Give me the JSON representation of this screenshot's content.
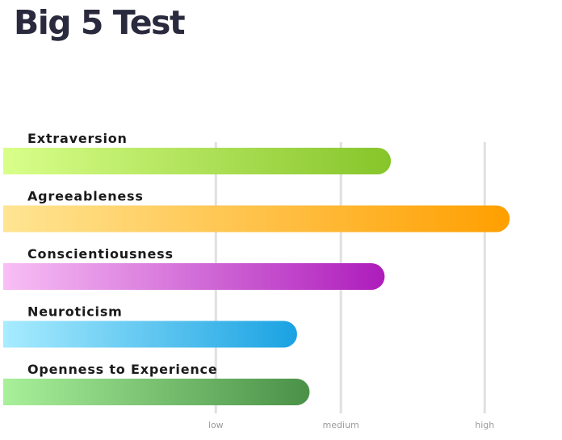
{
  "page": {
    "title": "Big 5 Test"
  },
  "chart_data": {
    "type": "bar",
    "orientation": "horizontal",
    "title": "Big 5 Test",
    "categories": [
      "Extraversion",
      "Agreeableness",
      "Conscientiousness",
      "Neuroticism",
      "Openness to Experience"
    ],
    "values": [
      62,
      81,
      61,
      47,
      49
    ],
    "xlim": [
      0,
      82
    ],
    "ticks": [
      {
        "label": "low",
        "value": 34
      },
      {
        "label": "medium",
        "value": 54
      },
      {
        "label": "high",
        "value": 77
      }
    ],
    "grid": true,
    "colors": [
      [
        "#d9ff8a",
        "#86c52a"
      ],
      [
        "#ffe593",
        "#ff9f00"
      ],
      [
        "#f8bff5",
        "#ad1cbb"
      ],
      [
        "#a8ecff",
        "#1aa2e2"
      ],
      [
        "#a8f09a",
        "#4a9148"
      ]
    ]
  }
}
